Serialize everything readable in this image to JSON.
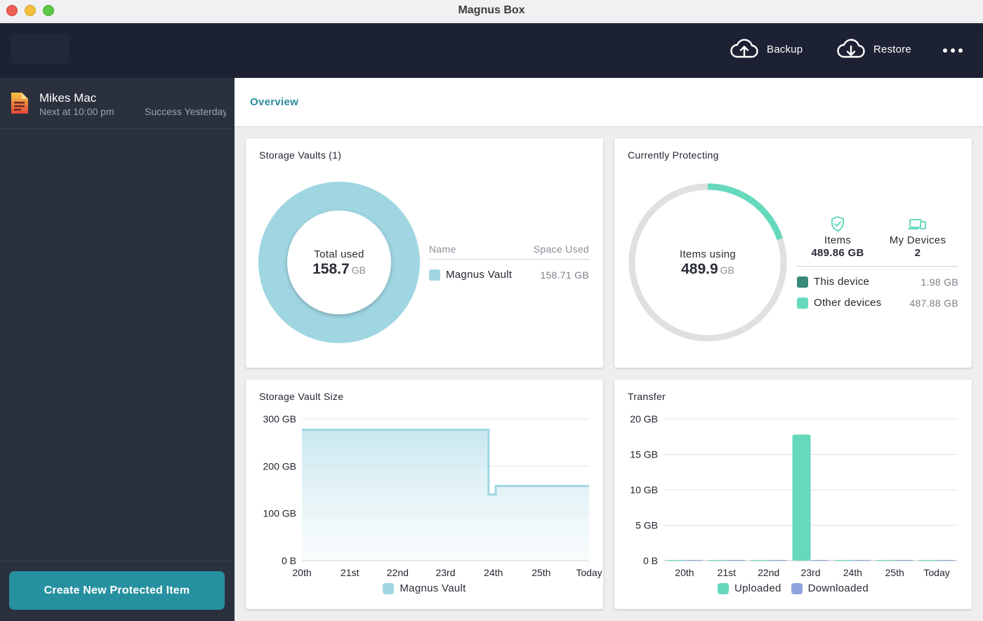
{
  "window": {
    "title": "Magnus Box"
  },
  "topbar": {
    "backup_label": "Backup",
    "restore_label": "Restore"
  },
  "sidebar": {
    "devices": [
      {
        "name": "Mikes Mac",
        "next": "Next at 10:00 pm",
        "status": "Success Yesterday"
      }
    ],
    "create_label": "Create New Protected Item"
  },
  "tabs": {
    "overview": "Overview"
  },
  "colors": {
    "vault": "#9fd6e2",
    "uploaded": "#66d9bd",
    "downloaded": "#8fa3dd",
    "this_device": "#3a8a7a",
    "other_devices": "#66d9bd",
    "ring_bg": "#e0e0e0",
    "accent": "#2690a0"
  },
  "storage_vaults": {
    "title": "Storage Vaults (1)",
    "total_label": "Total used",
    "total_value": "158.7",
    "total_unit": "GB",
    "col_name": "Name",
    "col_space": "Space Used",
    "rows": [
      {
        "name": "Magnus Vault",
        "space": "158.71 GB"
      }
    ]
  },
  "protecting": {
    "title": "Currently Protecting",
    "center_label": "Items using",
    "center_value": "489.9",
    "center_unit": "GB",
    "progress_fraction": 0.2,
    "items_label": "Items",
    "items_value": "489.86 GB",
    "devices_label": "My Devices",
    "devices_value": "2",
    "rows": [
      {
        "name": "This device",
        "value": "1.98 GB"
      },
      {
        "name": "Other devices",
        "value": "487.88 GB"
      }
    ]
  },
  "chart_data": [
    {
      "type": "area",
      "title": "Storage Vault Size",
      "categories": [
        "20th",
        "21st",
        "22nd",
        "23rd",
        "24th",
        "25th",
        "Today"
      ],
      "y_ticks": [
        "300 GB",
        "200 GB",
        "100 GB",
        "0 B"
      ],
      "ylim": [
        0,
        300
      ],
      "series": [
        {
          "name": "Magnus Vault",
          "points": [
            [
              0,
              277
            ],
            [
              3.9,
              277
            ],
            [
              3.9,
              140
            ],
            [
              4.05,
              140
            ],
            [
              4.05,
              158
            ],
            [
              6,
              158
            ]
          ]
        }
      ],
      "grid": true,
      "legend": "bottom"
    },
    {
      "type": "bar",
      "title": "Transfer",
      "categories": [
        "20th",
        "21st",
        "22nd",
        "23rd",
        "24th",
        "25th",
        "Today"
      ],
      "y_ticks": [
        "20 GB",
        "15 GB",
        "10 GB",
        "5 GB",
        "0 B"
      ],
      "ylim": [
        0,
        20
      ],
      "series": [
        {
          "name": "Uploaded",
          "values": [
            0,
            0,
            0,
            17.8,
            0,
            0,
            0
          ]
        },
        {
          "name": "Downloaded",
          "values": [
            0,
            0,
            0,
            0,
            0,
            0,
            0
          ]
        }
      ],
      "grid": true,
      "legend": "bottom"
    }
  ]
}
